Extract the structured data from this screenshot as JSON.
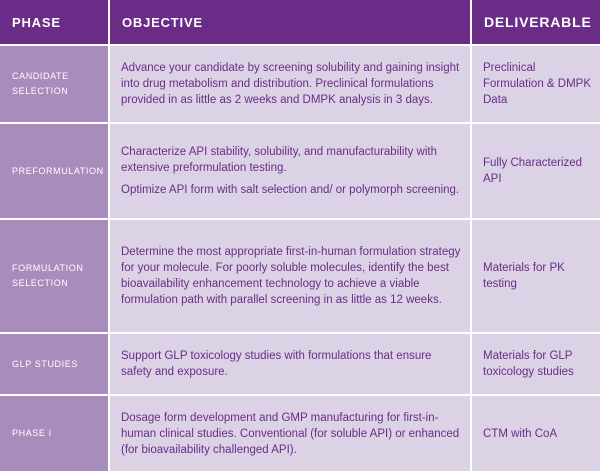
{
  "header": {
    "phase": "PHASE",
    "objective": "OBJECTIVE",
    "deliverable": "DELIVERABLE"
  },
  "rows": [
    {
      "phase_lines": [
        "CANDIDATE",
        "SELECTION"
      ],
      "objective": [
        "Advance your candidate by screening solubility and gaining insight into drug metabolism and distribution. Preclinical formulations provided in as little as 2 weeks and DMPK analysis in 3 days."
      ],
      "deliverable": "Preclinical Formulation & DMPK Data"
    },
    {
      "phase_lines": [
        "PREFORMULATION"
      ],
      "objective": [
        "Characterize API stability, solubility, and manufacturability with extensive preformulation testing.",
        "Optimize API form with salt selection and/ or polymorph screening."
      ],
      "deliverable": "Fully Characterized API"
    },
    {
      "phase_lines": [
        "FORMULATION",
        "SELECTION"
      ],
      "objective": [
        "Determine the most appropriate first-in-human formulation strategy for your molecule. For poorly soluble molecules, identify the best bioavailability enhancement technology to achieve a viable formulation path with parallel screening in as little as 12 weeks."
      ],
      "deliverable": "Materials for PK testing"
    },
    {
      "phase_lines": [
        "GLP STUDIES"
      ],
      "objective": [
        "Support GLP toxicology studies with formulations that ensure safety and exposure."
      ],
      "deliverable": "Materials for GLP toxicology studies"
    },
    {
      "phase_lines": [
        "PHASE I"
      ],
      "objective": [
        "Dosage form development and GMP manufacturing for first-in-human clinical studies. Conventional (for soluble API) or enhanced (for bioavailability challenged API)."
      ],
      "deliverable": "CTM with CoA"
    }
  ],
  "colors": {
    "header_bg": "#6a2c86",
    "phase_bg": "#a78cbc",
    "body_bg": "#dcd2e6",
    "body_text": "#6a2c86"
  }
}
